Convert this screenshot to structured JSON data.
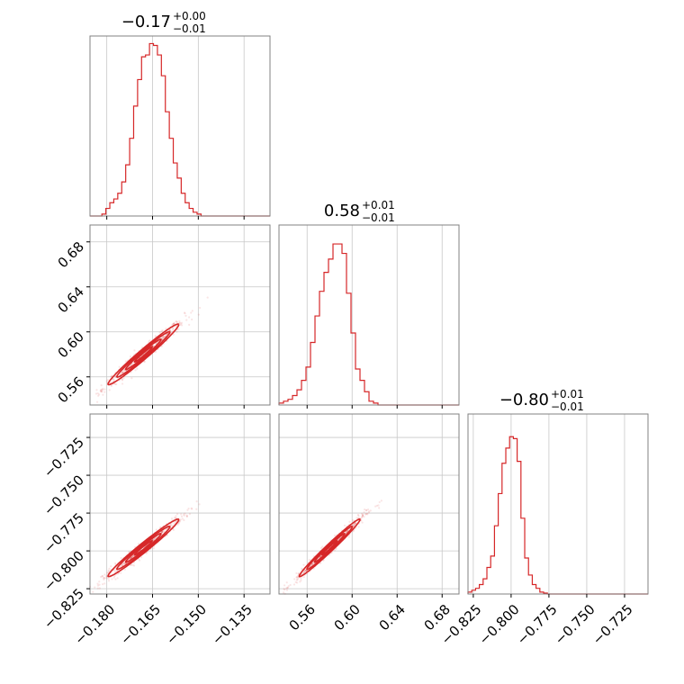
{
  "chart_data": {
    "type": "corner",
    "accent_color": "#d62728",
    "params": [
      {
        "title": {
          "median": "−0.17",
          "plus": "+0.00",
          "minus": "−0.01"
        },
        "range": [
          -0.1855,
          -0.1265
        ],
        "ticks": [
          -0.18,
          -0.165,
          -0.15,
          -0.135
        ],
        "tick_labels": [
          "−0.180",
          "−0.165",
          "−0.150",
          "−0.135"
        ],
        "hist": {
          "x": [
            -0.1855,
            -0.1842,
            -0.1829,
            -0.1816,
            -0.1803,
            -0.179,
            -0.1777,
            -0.1764,
            -0.1751,
            -0.1738,
            -0.1725,
            -0.1712,
            -0.1699,
            -0.1686,
            -0.1673,
            -0.166,
            -0.1647,
            -0.1634,
            -0.1621,
            -0.1608,
            -0.1595,
            -0.1582,
            -0.1569,
            -0.1556,
            -0.1543,
            -0.153,
            -0.1517,
            -0.1504,
            -0.1491,
            -0.1478,
            -0.1465
          ],
          "y": [
            0,
            0,
            0,
            0.01,
            0.04,
            0.07,
            0.09,
            0.12,
            0.18,
            0.27,
            0.41,
            0.58,
            0.72,
            0.84,
            0.85,
            0.91,
            0.9,
            0.85,
            0.74,
            0.55,
            0.41,
            0.28,
            0.2,
            0.12,
            0.07,
            0.04,
            0.02,
            0.01,
            0,
            0,
            0
          ]
        }
      },
      {
        "title": {
          "median": "0.58",
          "plus": "+0.01",
          "minus": "−0.01"
        },
        "range": [
          0.535,
          0.695
        ],
        "ticks": [
          0.56,
          0.6,
          0.64,
          0.68
        ],
        "tick_labels": [
          "0.56",
          "0.60",
          "0.64",
          "0.68"
        ],
        "hist": {
          "x": [
            0.535,
            0.539,
            0.543,
            0.547,
            0.551,
            0.555,
            0.559,
            0.563,
            0.567,
            0.571,
            0.575,
            0.579,
            0.583,
            0.587,
            0.591,
            0.595,
            0.599,
            0.603,
            0.607,
            0.611,
            0.615,
            0.619
          ],
          "y": [
            0.01,
            0.02,
            0.03,
            0.05,
            0.08,
            0.13,
            0.2,
            0.33,
            0.47,
            0.6,
            0.7,
            0.77,
            0.85,
            0.85,
            0.8,
            0.59,
            0.38,
            0.19,
            0.13,
            0.07,
            0.02,
            0.01
          ]
        }
      },
      {
        "title": {
          "median": "−0.80",
          "plus": "+0.01",
          "minus": "−0.01"
        },
        "range": [
          -0.8285,
          -0.7095
        ],
        "ticks": [
          -0.825,
          -0.8,
          -0.775,
          -0.75,
          -0.725
        ],
        "tick_labels": [
          "−0.825",
          "−0.800",
          "−0.775",
          "−0.750",
          "−0.725"
        ],
        "hist": {
          "x": [
            -0.8285,
            -0.826,
            -0.8235,
            -0.821,
            -0.8185,
            -0.816,
            -0.8135,
            -0.811,
            -0.8085,
            -0.806,
            -0.8035,
            -0.801,
            -0.7985,
            -0.796,
            -0.7935,
            -0.791,
            -0.7885,
            -0.786,
            -0.7835,
            -0.781,
            -0.7785,
            -0.776
          ],
          "y": [
            0.01,
            0.02,
            0.03,
            0.05,
            0.08,
            0.14,
            0.2,
            0.36,
            0.53,
            0.69,
            0.77,
            0.83,
            0.82,
            0.7,
            0.4,
            0.19,
            0.1,
            0.05,
            0.03,
            0.01,
            0.005,
            0
          ]
        }
      }
    ],
    "pairs": [
      {
        "row": 1,
        "col": 0,
        "mean": [
          -0.168,
          0.58
        ],
        "sd": [
          0.0058,
          0.0135
        ],
        "corr": 0.98
      },
      {
        "row": 2,
        "col": 0,
        "mean": [
          -0.168,
          -0.798
        ],
        "sd": [
          0.0058,
          0.0095
        ],
        "corr": 0.98
      },
      {
        "row": 2,
        "col": 1,
        "mean": [
          0.58,
          -0.798
        ],
        "sd": [
          0.0135,
          0.0095
        ],
        "corr": 0.985
      }
    ],
    "grid": true
  }
}
